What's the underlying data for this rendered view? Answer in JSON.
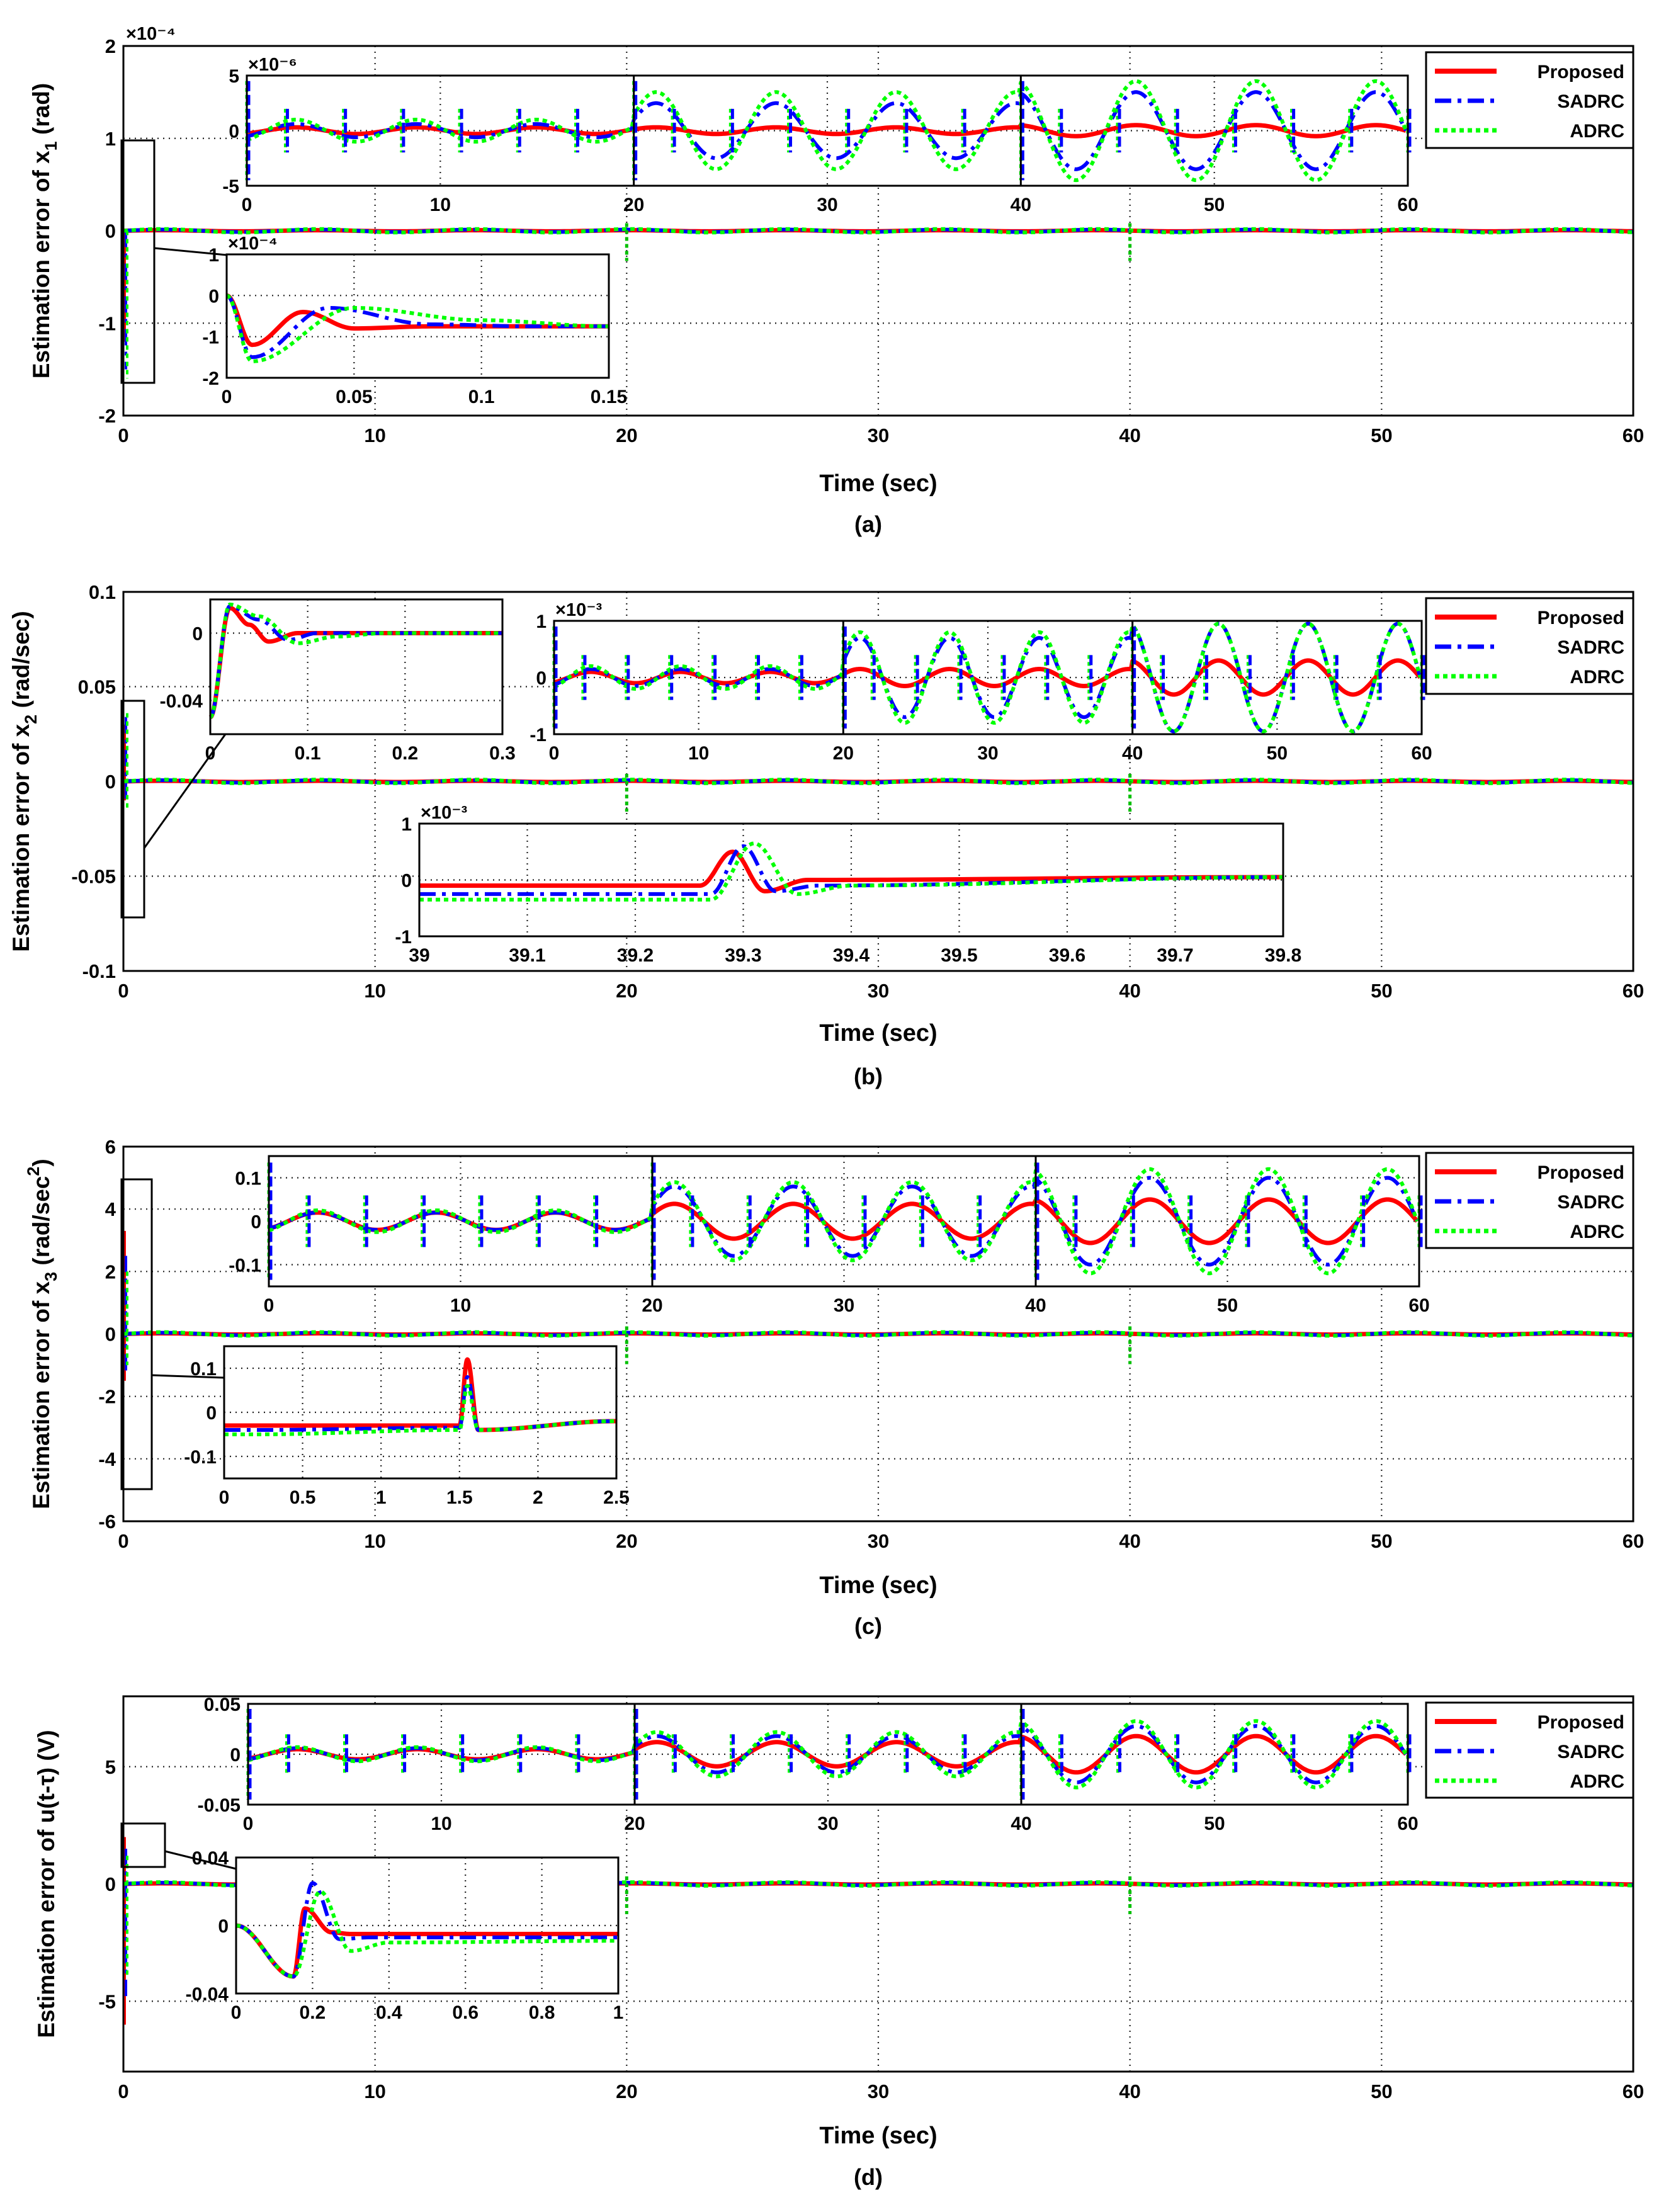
{
  "figure": {
    "legend": [
      "Proposed",
      "SADRC",
      "ADRC"
    ],
    "colors": {
      "Proposed": "#ff0000",
      "SADRC": "#0000ff",
      "ADRC": "#00ff00"
    }
  },
  "chart_data": [
    {
      "type": "line",
      "panel_label": "(a)",
      "xlabel": "Time (sec)",
      "ylabel_main": "Estimation error of x",
      "ylabel_sub": "1",
      "ylabel_tail": " (rad)",
      "xlim": [
        0,
        60
      ],
      "ylim": [
        -2,
        2
      ],
      "xticks": [
        "0",
        "10",
        "20",
        "30",
        "40",
        "50",
        "60"
      ],
      "yticks": [
        "-2",
        "-1",
        "0",
        "1",
        "2"
      ],
      "exponent": "×10⁻⁴",
      "legend": [
        "Proposed",
        "SADRC",
        "ADRC"
      ],
      "grid": true,
      "series": [
        {
          "name": "Proposed",
          "x": [
            0,
            0.01,
            0.03,
            0.05,
            0.1,
            20,
            40,
            60
          ],
          "y": [
            0,
            -1.2,
            -0.5,
            -0.8,
            0,
            0,
            0,
            0
          ]
        },
        {
          "name": "SADRC",
          "x": [
            0,
            0.01,
            0.04,
            0.08,
            0.15,
            20,
            40,
            60
          ],
          "y": [
            0,
            -1.5,
            -0.4,
            -0.6,
            0,
            0,
            0,
            0
          ]
        },
        {
          "name": "ADRC",
          "x": [
            0,
            0.01,
            0.05,
            0.1,
            0.15,
            20,
            40,
            60
          ],
          "y": [
            0,
            -1.6,
            -0.4,
            -0.5,
            0,
            0,
            0,
            0
          ]
        }
      ],
      "insets": [
        {
          "xlim": [
            0,
            60
          ],
          "ylim": [
            -5,
            5
          ],
          "xticks": [
            "0",
            "10",
            "20",
            "30",
            "40",
            "50",
            "60"
          ],
          "yticks": [
            "-5",
            "0",
            "5"
          ],
          "exponent": "×10⁻⁶",
          "series": [
            {
              "name": "Proposed",
              "amplitude": [
                0.3,
                0.3,
                0.5
              ]
            },
            {
              "name": "SADRC",
              "amplitude": [
                0.6,
                2.5,
                3.5
              ]
            },
            {
              "name": "ADRC",
              "amplitude": [
                1.0,
                3.5,
                4.5
              ]
            }
          ]
        },
        {
          "xlim": [
            0,
            0.15
          ],
          "ylim": [
            -2,
            1
          ],
          "xticks": [
            "0",
            "0.05",
            "0.1",
            "0.15"
          ],
          "yticks": [
            "-2",
            "-1",
            "0",
            "1"
          ],
          "exponent": "×10⁻⁴",
          "series": [
            {
              "name": "Proposed",
              "x": [
                0,
                0.01,
                0.03,
                0.05,
                0.08,
                0.15
              ],
              "y": [
                0,
                -1.2,
                -0.4,
                -0.8,
                -0.75,
                -0.75
              ]
            },
            {
              "name": "SADRC",
              "x": [
                0,
                0.01,
                0.04,
                0.08,
                0.12,
                0.15
              ],
              "y": [
                0,
                -1.5,
                -0.3,
                -0.7,
                -0.75,
                -0.75
              ]
            },
            {
              "name": "ADRC",
              "x": [
                0,
                0.01,
                0.05,
                0.1,
                0.15
              ],
              "y": [
                0,
                -1.6,
                -0.3,
                -0.6,
                -0.75
              ]
            }
          ]
        }
      ]
    },
    {
      "type": "line",
      "panel_label": "(b)",
      "xlabel": "Time (sec)",
      "ylabel_main": "Estimation error of x",
      "ylabel_sub": "2",
      "ylabel_tail": " (rad/sec)",
      "xlim": [
        0,
        60
      ],
      "ylim": [
        -0.1,
        0.1
      ],
      "xticks": [
        "0",
        "10",
        "20",
        "30",
        "40",
        "50",
        "60"
      ],
      "yticks": [
        "-0.1",
        "-0.05",
        "0",
        "0.05",
        "0.1"
      ],
      "legend": [
        "Proposed",
        "SADRC",
        "ADRC"
      ],
      "grid": true,
      "series": [
        {
          "name": "Proposed",
          "x": [
            0,
            0.02,
            0.05,
            0.1,
            20,
            40,
            60
          ],
          "y": [
            0,
            0.03,
            -0.01,
            0,
            0,
            0,
            0
          ]
        },
        {
          "name": "SADRC",
          "x": [
            0,
            0.02,
            0.06,
            0.12,
            20,
            40,
            60
          ],
          "y": [
            0,
            0.034,
            -0.012,
            0,
            0,
            0,
            0
          ]
        },
        {
          "name": "ADRC",
          "x": [
            0,
            0.02,
            0.07,
            0.14,
            20,
            40,
            60
          ],
          "y": [
            0,
            0.036,
            -0.015,
            0,
            0,
            0,
            0
          ]
        }
      ],
      "insets": [
        {
          "xlim": [
            0,
            0.3
          ],
          "ylim": [
            -0.06,
            0.02
          ],
          "xticks": [
            "0",
            "0.1",
            "0.2",
            "0.3"
          ],
          "yticks": [
            "-0.04",
            "0"
          ],
          "series": [
            {
              "name": "Proposed",
              "x": [
                0,
                0.02,
                0.04,
                0.06,
                0.09,
                0.12,
                0.3
              ],
              "y": [
                -0.05,
                0.015,
                0.005,
                -0.005,
                0.0,
                0.0,
                0
              ]
            },
            {
              "name": "SADRC",
              "x": [
                0,
                0.02,
                0.05,
                0.08,
                0.11,
                0.15,
                0.3
              ],
              "y": [
                -0.05,
                0.016,
                0.008,
                -0.004,
                0.0,
                0.0,
                0
              ]
            },
            {
              "name": "ADRC",
              "x": [
                0,
                0.02,
                0.05,
                0.09,
                0.13,
                0.18,
                0.3
              ],
              "y": [
                -0.05,
                0.017,
                0.01,
                -0.006,
                -0.002,
                0.0,
                0
              ]
            }
          ]
        },
        {
          "xlim": [
            0,
            60
          ],
          "ylim": [
            -1,
            1
          ],
          "xticks": [
            "0",
            "10",
            "20",
            "30",
            "40",
            "50",
            "60"
          ],
          "yticks": [
            "-1",
            "0",
            "1"
          ],
          "exponent": "×10⁻³",
          "series": [
            {
              "name": "Proposed",
              "amplitude": [
                0.1,
                0.15,
                0.3
              ]
            },
            {
              "name": "SADRC",
              "amplitude": [
                0.15,
                0.7,
                0.95
              ]
            },
            {
              "name": "ADRC",
              "amplitude": [
                0.2,
                0.8,
                0.95
              ]
            }
          ]
        },
        {
          "xlim": [
            39,
            39.8
          ],
          "ylim": [
            -1,
            1
          ],
          "xticks": [
            "39",
            "39.1",
            "39.2",
            "39.3",
            "39.4",
            "39.5",
            "39.6",
            "39.7",
            "39.8"
          ],
          "yticks": [
            "-1",
            "0",
            "1"
          ],
          "exponent": "×10⁻³",
          "series": [
            {
              "name": "Proposed",
              "x": [
                39,
                39.26,
                39.29,
                39.32,
                39.36,
                39.8
              ],
              "y": [
                -0.1,
                -0.1,
                0.5,
                -0.2,
                0.0,
                0.05
              ]
            },
            {
              "name": "SADRC",
              "x": [
                39,
                39.27,
                39.3,
                39.33,
                39.37,
                39.8
              ],
              "y": [
                -0.25,
                -0.25,
                0.6,
                -0.2,
                -0.1,
                0.05
              ]
            },
            {
              "name": "ADRC",
              "x": [
                39,
                39.27,
                39.31,
                39.35,
                39.4,
                39.8
              ],
              "y": [
                -0.35,
                -0.35,
                0.65,
                -0.25,
                -0.1,
                0.05
              ]
            }
          ]
        }
      ]
    },
    {
      "type": "line",
      "panel_label": "(c)",
      "xlabel": "Time (sec)",
      "ylabel_main": "Estimation error of x",
      "ylabel_sub": "3",
      "ylabel_tail": " (rad/sec",
      "ylabel_sup": "2",
      "ylabel_end": ")",
      "xlim": [
        0,
        60
      ],
      "ylim": [
        -6,
        6
      ],
      "xticks": [
        "0",
        "10",
        "20",
        "30",
        "40",
        "50",
        "60"
      ],
      "yticks": [
        "-6",
        "-4",
        "-2",
        "0",
        "2",
        "4",
        "6"
      ],
      "legend": [
        "Proposed",
        "SADRC",
        "ADRC"
      ],
      "grid": true,
      "series": [
        {
          "name": "Proposed",
          "x": [
            0,
            0.02,
            0.05,
            0.1,
            20,
            40,
            60
          ],
          "y": [
            0,
            3.3,
            -1.5,
            0,
            0,
            0,
            0
          ]
        },
        {
          "name": "SADRC",
          "x": [
            0,
            0.02,
            0.05,
            0.1,
            20,
            40,
            60
          ],
          "y": [
            0,
            2.5,
            -1.2,
            0,
            0,
            0,
            0
          ]
        },
        {
          "name": "ADRC",
          "x": [
            0,
            0.02,
            0.05,
            0.1,
            20,
            40,
            60
          ],
          "y": [
            0,
            2.0,
            -1.0,
            0,
            0,
            0,
            0
          ]
        }
      ],
      "insets": [
        {
          "xlim": [
            0,
            60
          ],
          "ylim": [
            -0.15,
            0.15
          ],
          "xticks": [
            "0",
            "10",
            "20",
            "30",
            "40",
            "50",
            "60"
          ],
          "yticks": [
            "-0.1",
            "0",
            "0.1"
          ],
          "series": [
            {
              "name": "Proposed",
              "amplitude": [
                0.02,
                0.04,
                0.05
              ]
            },
            {
              "name": "SADRC",
              "amplitude": [
                0.02,
                0.08,
                0.1
              ]
            },
            {
              "name": "ADRC",
              "amplitude": [
                0.025,
                0.09,
                0.12
              ]
            }
          ]
        },
        {
          "xlim": [
            0,
            2.5
          ],
          "ylim": [
            -0.15,
            0.15
          ],
          "xticks": [
            "0",
            "0.5",
            "1",
            "1.5",
            "2",
            "2.5"
          ],
          "yticks": [
            "-0.1",
            "0",
            "0.1"
          ],
          "series": [
            {
              "name": "Proposed",
              "x": [
                0,
                0.2,
                1.5,
                1.55,
                1.62,
                2.5
              ],
              "y": [
                -0.03,
                -0.03,
                -0.03,
                0.12,
                -0.04,
                -0.02
              ]
            },
            {
              "name": "SADRC",
              "x": [
                0,
                0.2,
                1.5,
                1.55,
                1.62,
                2.5
              ],
              "y": [
                -0.04,
                -0.04,
                -0.035,
                0.08,
                -0.04,
                -0.02
              ]
            },
            {
              "name": "ADRC",
              "x": [
                0,
                0.2,
                1.5,
                1.55,
                1.62,
                2.5
              ],
              "y": [
                -0.05,
                -0.05,
                -0.04,
                0.06,
                -0.04,
                -0.02
              ]
            }
          ]
        }
      ]
    },
    {
      "type": "line",
      "panel_label": "(d)",
      "xlabel": "Time (sec)",
      "ylabel_main": "Estimation error of u(t-τ) (V)",
      "xlim": [
        0,
        60
      ],
      "ylim": [
        -8,
        8
      ],
      "xticks": [
        "0",
        "10",
        "20",
        "30",
        "40",
        "50",
        "60"
      ],
      "yticks": [
        "-5",
        "0",
        "5"
      ],
      "legend": [
        "Proposed",
        "SADRC",
        "ADRC"
      ],
      "grid": true,
      "series": [
        {
          "name": "Proposed",
          "x": [
            0,
            0.02,
            0.05,
            0.1,
            20,
            40,
            60
          ],
          "y": [
            0,
            2,
            -6,
            0,
            0,
            0,
            0
          ]
        },
        {
          "name": "SADRC",
          "x": [
            0,
            0.02,
            0.05,
            0.1,
            20,
            40,
            60
          ],
          "y": [
            0,
            1.5,
            -5,
            0,
            0,
            0,
            0
          ]
        },
        {
          "name": "ADRC",
          "x": [
            0,
            0.02,
            0.05,
            0.1,
            20,
            40,
            60
          ],
          "y": [
            0,
            1.2,
            -4,
            0,
            0,
            0,
            0
          ]
        }
      ],
      "insets": [
        {
          "xlim": [
            0,
            60
          ],
          "ylim": [
            -0.05,
            0.05
          ],
          "xticks": [
            "0",
            "10",
            "20",
            "30",
            "40",
            "50",
            "60"
          ],
          "yticks": [
            "-0.05",
            "0",
            "0.05"
          ],
          "series": [
            {
              "name": "Proposed",
              "amplitude": [
                0.005,
                0.012,
                0.018
              ]
            },
            {
              "name": "SADRC",
              "amplitude": [
                0.006,
                0.018,
                0.028
              ]
            },
            {
              "name": "ADRC",
              "amplitude": [
                0.007,
                0.022,
                0.033
              ]
            }
          ]
        },
        {
          "xlim": [
            0,
            1
          ],
          "ylim": [
            -0.04,
            0.04
          ],
          "xticks": [
            "0",
            "0.2",
            "0.4",
            "0.6",
            "0.8",
            "1"
          ],
          "yticks": [
            "-0.04",
            "0",
            "0.04"
          ],
          "series": [
            {
              "name": "Proposed",
              "x": [
                0,
                0.15,
                0.18,
                0.25,
                0.3,
                1
              ],
              "y": [
                0,
                -0.03,
                0.01,
                -0.004,
                -0.005,
                -0.005
              ]
            },
            {
              "name": "SADRC",
              "x": [
                0,
                0.15,
                0.2,
                0.27,
                0.35,
                1
              ],
              "y": [
                0,
                -0.03,
                0.025,
                -0.008,
                -0.007,
                -0.007
              ]
            },
            {
              "name": "ADRC",
              "x": [
                0,
                0.15,
                0.22,
                0.3,
                0.4,
                1
              ],
              "y": [
                0,
                -0.03,
                0.02,
                -0.015,
                -0.01,
                -0.009
              ]
            }
          ]
        }
      ]
    }
  ]
}
